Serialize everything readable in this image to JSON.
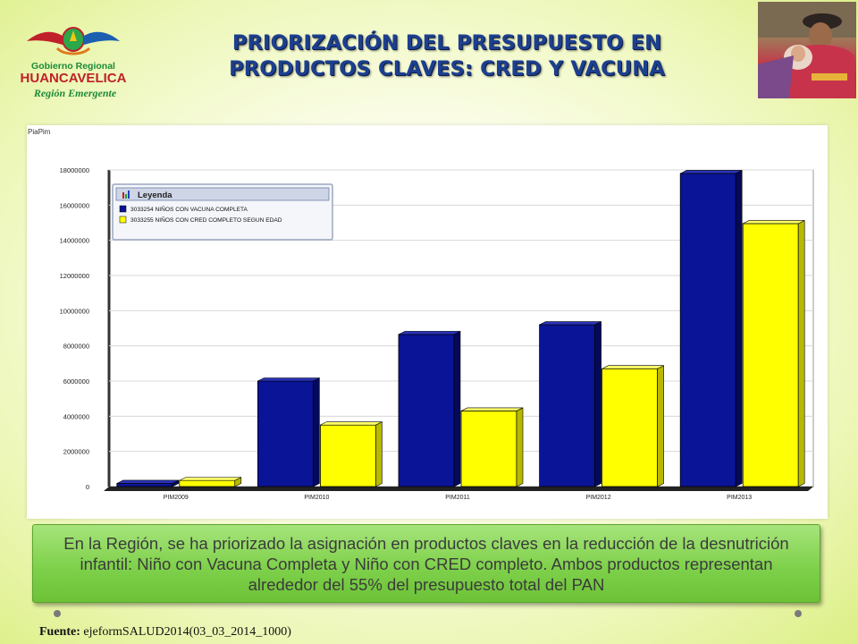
{
  "header": {
    "title_line1": "PRIORIZACIÓN DEL PRESUPUESTO EN",
    "title_line2": "PRODUCTOS CLAVES: CRED  Y VACUNA"
  },
  "logo": {
    "line1": "Gobierno Regional",
    "line2": "HUANCAVELICA",
    "line3": "Región Emergente"
  },
  "colors": {
    "series1": "#0a1496",
    "series2": "#ffff00",
    "title": "#1c3f8f",
    "callout": "#7fd14b"
  },
  "chart_data": {
    "type": "bar",
    "title": "PiaPim",
    "legend_title": "Leyenda",
    "legend_position": "top-left",
    "categories": [
      "PIM2009",
      "PIM2010",
      "PIM2011",
      "PIM2012",
      "PIM2013"
    ],
    "series": [
      {
        "name": "3033254 NIÑOS CON VACUNA COMPLETA",
        "values": [
          180000,
          6000000,
          8650000,
          9200000,
          17800000
        ]
      },
      {
        "name": "3033255 NIÑOS CON CRED COMPLETO SEGUN EDAD",
        "values": [
          350000,
          3500000,
          4300000,
          6700000,
          14950000
        ]
      }
    ],
    "ylim": [
      0,
      18000000
    ],
    "yticks": [
      "0",
      "2000000",
      "4000000",
      "6000000",
      "8000000",
      "10000000",
      "12000000",
      "14000000",
      "16000000",
      "18000000"
    ],
    "xlabel": "",
    "ylabel": ""
  },
  "callout": {
    "text": "En la Región, se ha priorizado la asignación en productos claves en la reducción de la desnutrición infantil: Niño con Vacuna Completa y Niño con CRED completo. Ambos productos representan alrededor del 55% del presupuesto total del PAN"
  },
  "source": {
    "label": "Fuente:",
    "text": " ejeformSALUD2014(03_03_2014_1000)"
  }
}
